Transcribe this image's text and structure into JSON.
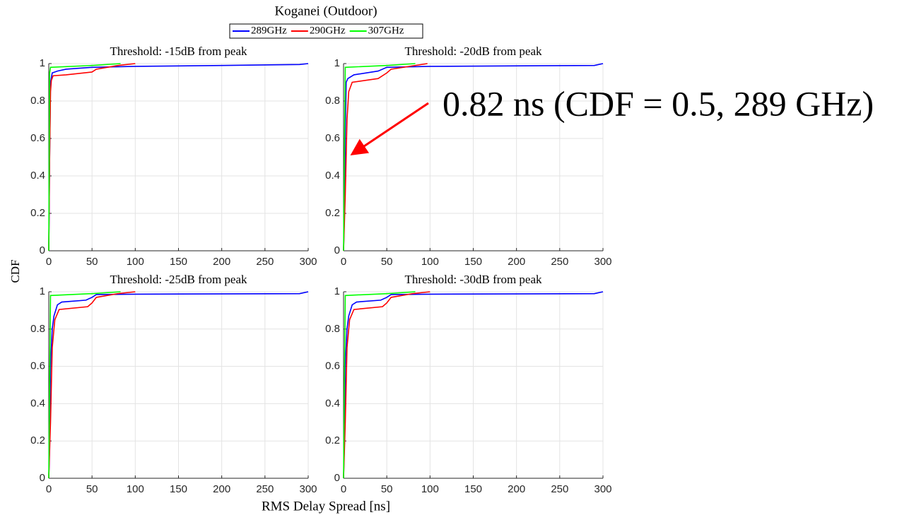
{
  "figure": {
    "title": "Koganei (Outdoor)",
    "xlabel": "RMS Delay Spread [ns]",
    "ylabel": "CDF",
    "annotation": "0.82 ns (CDF = 0.5, 289 GHz)"
  },
  "chart_data": [
    {
      "type": "line",
      "title": "Threshold: -15dB from peak",
      "xlim": [
        0,
        300
      ],
      "ylim": [
        0,
        1
      ],
      "xticks": [
        0,
        50,
        100,
        150,
        200,
        250,
        300
      ],
      "yticks": [
        0,
        0.2,
        0.4,
        0.6,
        0.8,
        1
      ],
      "grid": true,
      "series": [
        {
          "name": "289GHz",
          "color": "#0000ff",
          "x": [
            0,
            1,
            2,
            4,
            10,
            20,
            50,
            100,
            200,
            290,
            300
          ],
          "values": [
            0,
            0.5,
            0.9,
            0.95,
            0.96,
            0.97,
            0.98,
            0.985,
            0.99,
            0.995,
            1
          ]
        },
        {
          "name": "290GHz",
          "color": "#ff0000",
          "x": [
            0,
            1,
            2,
            3,
            5,
            20,
            50,
            55,
            80,
            100
          ],
          "values": [
            0,
            0.5,
            0.85,
            0.91,
            0.935,
            0.94,
            0.955,
            0.97,
            0.99,
            1
          ]
        },
        {
          "name": "307GHz",
          "color": "#00ff00",
          "x": [
            0,
            1,
            2,
            50,
            83
          ],
          "values": [
            0,
            0.95,
            0.98,
            0.99,
            1
          ]
        }
      ]
    },
    {
      "type": "line",
      "title": "Threshold: -20dB from peak",
      "xlim": [
        0,
        300
      ],
      "ylim": [
        0,
        1
      ],
      "xticks": [
        0,
        50,
        100,
        150,
        200,
        250,
        300
      ],
      "yticks": [
        0,
        0.2,
        0.4,
        0.6,
        0.8,
        1
      ],
      "grid": true,
      "series": [
        {
          "name": "289GHz",
          "color": "#0000ff",
          "x": [
            0,
            1,
            2,
            3,
            5,
            12,
            40,
            50,
            100,
            290,
            300
          ],
          "values": [
            0,
            0.2,
            0.6,
            0.9,
            0.92,
            0.94,
            0.96,
            0.98,
            0.985,
            0.99,
            1
          ]
        },
        {
          "name": "290GHz",
          "color": "#ff0000",
          "x": [
            0,
            2,
            4,
            6,
            10,
            40,
            50,
            55,
            97
          ],
          "values": [
            0,
            0.3,
            0.7,
            0.85,
            0.9,
            0.92,
            0.95,
            0.97,
            1
          ]
        },
        {
          "name": "307GHz",
          "color": "#00ff00",
          "x": [
            0,
            1,
            2,
            50,
            83
          ],
          "values": [
            0,
            0.5,
            0.98,
            0.99,
            1
          ]
        }
      ]
    },
    {
      "type": "line",
      "title": "Threshold: -25dB from peak",
      "xlim": [
        0,
        300
      ],
      "ylim": [
        0,
        1
      ],
      "xticks": [
        0,
        50,
        100,
        150,
        200,
        250,
        300
      ],
      "yticks": [
        0,
        0.2,
        0.4,
        0.6,
        0.8,
        1
      ],
      "grid": true,
      "series": [
        {
          "name": "289GHz",
          "color": "#0000ff",
          "x": [
            0,
            1,
            2,
            4,
            6,
            8,
            10,
            15,
            43,
            50,
            55,
            100,
            290,
            300
          ],
          "values": [
            0,
            0.2,
            0.6,
            0.8,
            0.87,
            0.9,
            0.93,
            0.945,
            0.955,
            0.97,
            0.985,
            0.987,
            0.99,
            1
          ]
        },
        {
          "name": "290GHz",
          "color": "#ff0000",
          "x": [
            0,
            2,
            4,
            7,
            12,
            45,
            50,
            55,
            80,
            100
          ],
          "values": [
            0,
            0.3,
            0.7,
            0.85,
            0.905,
            0.92,
            0.94,
            0.97,
            0.99,
            1
          ]
        },
        {
          "name": "307GHz",
          "color": "#00ff00",
          "x": [
            0,
            1,
            2,
            50,
            83
          ],
          "values": [
            0,
            0.5,
            0.98,
            0.99,
            1
          ]
        }
      ]
    },
    {
      "type": "line",
      "title": "Threshold: -30dB from peak",
      "xlim": [
        0,
        300
      ],
      "ylim": [
        0,
        1
      ],
      "xticks": [
        0,
        50,
        100,
        150,
        200,
        250,
        300
      ],
      "yticks": [
        0,
        0.2,
        0.4,
        0.6,
        0.8,
        1
      ],
      "grid": true,
      "series": [
        {
          "name": "289GHz",
          "color": "#0000ff",
          "x": [
            0,
            1,
            2,
            4,
            6,
            8,
            10,
            15,
            43,
            50,
            55,
            100,
            290,
            300
          ],
          "values": [
            0,
            0.2,
            0.6,
            0.8,
            0.87,
            0.9,
            0.93,
            0.945,
            0.955,
            0.97,
            0.985,
            0.987,
            0.99,
            1
          ]
        },
        {
          "name": "290GHz",
          "color": "#ff0000",
          "x": [
            0,
            2,
            4,
            7,
            12,
            45,
            50,
            55,
            80,
            100
          ],
          "values": [
            0,
            0.3,
            0.7,
            0.85,
            0.905,
            0.92,
            0.94,
            0.97,
            0.99,
            1
          ]
        },
        {
          "name": "307GHz",
          "color": "#00ff00",
          "x": [
            0,
            1,
            2,
            50,
            83
          ],
          "values": [
            0,
            0.5,
            0.98,
            0.99,
            1
          ]
        }
      ]
    }
  ]
}
